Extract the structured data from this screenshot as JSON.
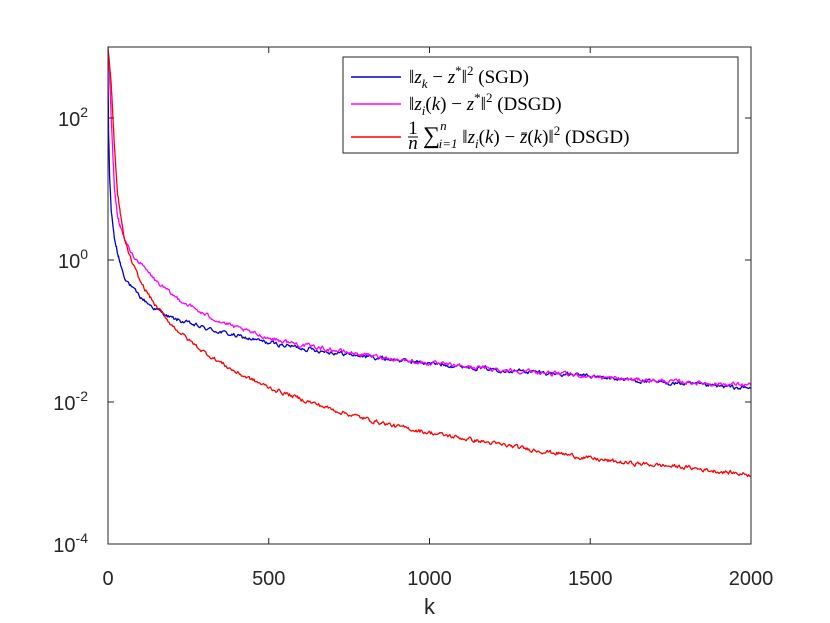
{
  "chart_data": {
    "type": "line",
    "xlabel": "k",
    "ylabel": "",
    "xlim": [
      0,
      2000
    ],
    "ylim": [
      0.0001,
      1000
    ],
    "yscale": "log",
    "grid": false,
    "legend_position": "top-right",
    "x_ticks": [
      "0",
      "500",
      "1000",
      "1500",
      "2000"
    ],
    "y_ticks": [
      {
        "base": "10",
        "exp": "-4",
        "value": 0.0001
      },
      {
        "base": "10",
        "exp": "-2",
        "value": 0.01
      },
      {
        "base": "10",
        "exp": "0",
        "value": 1
      },
      {
        "base": "10",
        "exp": "2",
        "value": 100
      }
    ],
    "series": [
      {
        "name": "‖z_k − z*‖² (SGD)",
        "color": "#0000cc",
        "legend": {
          "parts": [
            {
              "t": "‖"
            },
            {
              "t": "z",
              "i": true
            },
            {
              "t": "k",
              "i": true,
              "sub": true
            },
            {
              "t": " − "
            },
            {
              "t": "z",
              "i": true
            },
            {
              "t": "*",
              "sup": true
            },
            {
              "t": "‖"
            },
            {
              "t": "2",
              "sup": true
            },
            {
              "t": " (SGD)"
            }
          ]
        },
        "points": [
          [
            0,
            450
          ],
          [
            2,
            60
          ],
          [
            5,
            15
          ],
          [
            10,
            5
          ],
          [
            20,
            2
          ],
          [
            30,
            1.2
          ],
          [
            50,
            0.6
          ],
          [
            75,
            0.4
          ],
          [
            100,
            0.3
          ],
          [
            150,
            0.2
          ],
          [
            200,
            0.15
          ],
          [
            300,
            0.11
          ],
          [
            400,
            0.085
          ],
          [
            500,
            0.068
          ],
          [
            600,
            0.058
          ],
          [
            700,
            0.05
          ],
          [
            800,
            0.044
          ],
          [
            900,
            0.039
          ],
          [
            1000,
            0.035
          ],
          [
            1100,
            0.032
          ],
          [
            1200,
            0.029
          ],
          [
            1300,
            0.027
          ],
          [
            1400,
            0.025
          ],
          [
            1500,
            0.023
          ],
          [
            1600,
            0.021
          ],
          [
            1700,
            0.019
          ],
          [
            1800,
            0.018
          ],
          [
            1900,
            0.0165
          ],
          [
            2000,
            0.0155
          ]
        ]
      },
      {
        "name": "‖z_i(k) − z*‖² (DSGD)",
        "color": "#ff00ff",
        "legend": {
          "parts": [
            {
              "t": "‖"
            },
            {
              "t": "z",
              "i": true
            },
            {
              "t": "i",
              "i": true,
              "sub": true
            },
            {
              "t": "("
            },
            {
              "t": "k",
              "i": true
            },
            {
              "t": ") − "
            },
            {
              "t": "z",
              "i": true
            },
            {
              "t": "*",
              "sup": true
            },
            {
              "t": "‖"
            },
            {
              "t": "2",
              "sup": true
            },
            {
              "t": " (DSGD)"
            }
          ]
        },
        "points": [
          [
            0,
            700
          ],
          [
            5,
            400
          ],
          [
            10,
            100
          ],
          [
            20,
            10
          ],
          [
            30,
            4
          ],
          [
            50,
            2
          ],
          [
            75,
            1.2
          ],
          [
            100,
            0.9
          ],
          [
            150,
            0.5
          ],
          [
            200,
            0.32
          ],
          [
            300,
            0.17
          ],
          [
            400,
            0.11
          ],
          [
            500,
            0.08
          ],
          [
            600,
            0.064
          ],
          [
            700,
            0.054
          ],
          [
            800,
            0.046
          ],
          [
            900,
            0.04
          ],
          [
            1000,
            0.035
          ],
          [
            1100,
            0.032
          ],
          [
            1200,
            0.029
          ],
          [
            1300,
            0.027
          ],
          [
            1400,
            0.025
          ],
          [
            1500,
            0.023
          ],
          [
            1600,
            0.021
          ],
          [
            1700,
            0.02
          ],
          [
            1800,
            0.019
          ],
          [
            1900,
            0.018
          ],
          [
            2000,
            0.0175
          ]
        ]
      },
      {
        "name": "1/n Σ_{i=1}^n ‖z_i(k) − z̄(k)‖² (DSGD)",
        "color": "#ff0000",
        "legend": {
          "parts": [
            {
              "t": "∑",
              "big": true
            },
            {
              "t": "n",
              "i": true,
              "sup": true,
              "raise": true
            },
            {
              "t": "i=1",
              "i": true,
              "sub": true
            },
            {
              "t": " ‖"
            },
            {
              "t": "z",
              "i": true
            },
            {
              "t": "i",
              "i": true,
              "sub": true
            },
            {
              "t": "("
            },
            {
              "t": "k",
              "i": true
            },
            {
              "t": ") − "
            },
            {
              "t": "z̄",
              "i": true
            },
            {
              "t": "("
            },
            {
              "t": "k",
              "i": true
            },
            {
              "t": ")‖"
            },
            {
              "t": "2",
              "sup": true
            },
            {
              "t": " (DSGD)"
            }
          ],
          "frac": {
            "num": "1",
            "den": "n"
          }
        },
        "points": [
          [
            0,
            1000
          ],
          [
            10,
            300
          ],
          [
            20,
            40
          ],
          [
            30,
            8
          ],
          [
            50,
            2
          ],
          [
            75,
            0.9
          ],
          [
            100,
            0.5
          ],
          [
            150,
            0.22
          ],
          [
            200,
            0.12
          ],
          [
            250,
            0.075
          ],
          [
            300,
            0.05
          ],
          [
            400,
            0.026
          ],
          [
            500,
            0.016
          ],
          [
            600,
            0.011
          ],
          [
            700,
            0.0078
          ],
          [
            800,
            0.0058
          ],
          [
            900,
            0.0045
          ],
          [
            1000,
            0.0037
          ],
          [
            1100,
            0.0031
          ],
          [
            1200,
            0.0026
          ],
          [
            1300,
            0.0022
          ],
          [
            1400,
            0.0019
          ],
          [
            1500,
            0.0016
          ],
          [
            1600,
            0.0014
          ],
          [
            1700,
            0.0013
          ],
          [
            1800,
            0.0012
          ],
          [
            1900,
            0.00105
          ],
          [
            2000,
            0.00095
          ]
        ]
      }
    ]
  }
}
